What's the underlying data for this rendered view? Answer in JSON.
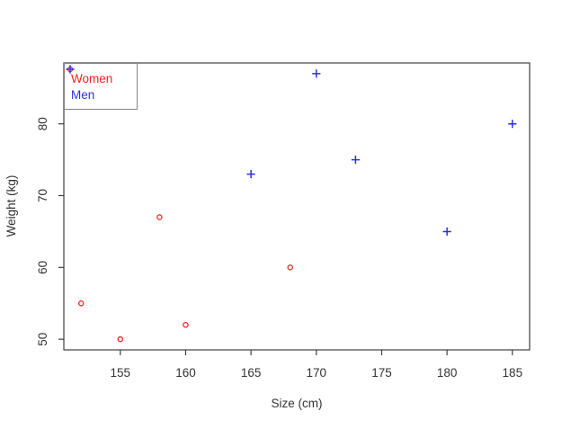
{
  "chart_data": {
    "type": "scatter",
    "title": "",
    "xlabel": "Size (cm)",
    "ylabel": "Weight (kg)",
    "xlim": [
      150.68,
      186.32
    ],
    "ylim": [
      48.52,
      88.48
    ],
    "x_ticks": [
      "155",
      "160",
      "165",
      "170",
      "175",
      "180",
      "185"
    ],
    "y_ticks": [
      "50",
      "60",
      "70",
      "80"
    ],
    "grid": false,
    "legend_position": "top-left",
    "axis_color": "#404040",
    "text_color": "#333333",
    "legend_border_color": "#858585",
    "background_color": "#ffffff",
    "series": [
      {
        "name": "Women",
        "marker": "circle-open",
        "color": "#ff2020",
        "points": [
          [
            152,
            55
          ],
          [
            155,
            50
          ],
          [
            158,
            67
          ],
          [
            160,
            52
          ],
          [
            168,
            60
          ]
        ]
      },
      {
        "name": "Men",
        "marker": "plus",
        "color": "#2e2ee8",
        "points": [
          [
            165,
            73
          ],
          [
            170,
            87
          ],
          [
            173,
            75
          ],
          [
            180,
            65
          ],
          [
            185,
            80
          ]
        ]
      }
    ]
  }
}
